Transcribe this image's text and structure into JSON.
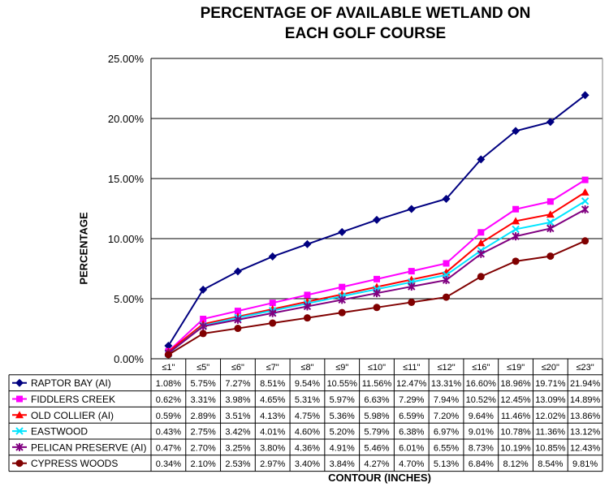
{
  "chart_data": {
    "type": "line",
    "title_line1": "PERCENTAGE OF AVAILABLE WETLAND ON",
    "title_line2": "EACH GOLF COURSE",
    "xlabel": "CONTOUR (INCHES)",
    "ylabel": "PERCENTAGE",
    "ylim": [
      0,
      25
    ],
    "y_ticks": [
      "0.00%",
      "5.00%",
      "10.00%",
      "15.00%",
      "20.00%",
      "25.00%"
    ],
    "grid": true,
    "legend": "data-table",
    "categories": [
      "≤1\"",
      "≤5\"",
      "≤6\"",
      "≤7\"",
      "≤8\"",
      "≤9\"",
      "≤10\"",
      "≤11\"",
      "≤12\"",
      "≤16\"",
      "≤19\"",
      "≤20\"",
      "≤23\""
    ],
    "series": [
      {
        "name": "RAPTOR BAY (AI)",
        "color": "#000080",
        "marker": "diamond",
        "values": [
          1.08,
          5.75,
          7.27,
          8.51,
          9.54,
          10.55,
          11.56,
          12.47,
          13.31,
          16.6,
          18.96,
          19.71,
          21.94
        ],
        "labels": [
          "1.08%",
          "5.75%",
          "7.27%",
          "8.51%",
          "9.54%",
          "10.55%",
          "11.56%",
          "12.47%",
          "13.31%",
          "16.60%",
          "18.96%",
          "19.71%",
          "21.94%"
        ]
      },
      {
        "name": "FIDDLERS CREEK",
        "color": "#FF00FF",
        "marker": "square",
        "values": [
          0.62,
          3.31,
          3.98,
          4.65,
          5.31,
          5.97,
          6.63,
          7.29,
          7.94,
          10.52,
          12.45,
          13.09,
          14.89
        ],
        "labels": [
          "0.62%",
          "3.31%",
          "3.98%",
          "4.65%",
          "5.31%",
          "5.97%",
          "6.63%",
          "7.29%",
          "7.94%",
          "10.52%",
          "12.45%",
          "13.09%",
          "14.89%"
        ]
      },
      {
        "name": "OLD COLLIER (AI)",
        "color": "#FF0000",
        "marker": "triangle",
        "values": [
          0.59,
          2.89,
          3.51,
          4.13,
          4.75,
          5.36,
          5.98,
          6.59,
          7.2,
          9.64,
          11.46,
          12.02,
          13.86
        ],
        "labels": [
          "0.59%",
          "2.89%",
          "3.51%",
          "4.13%",
          "4.75%",
          "5.36%",
          "5.98%",
          "6.59%",
          "7.20%",
          "9.64%",
          "11.46%",
          "12.02%",
          "13.86%"
        ]
      },
      {
        "name": "EASTWOOD",
        "color": "#00E5FF",
        "marker": "x",
        "values": [
          0.43,
          2.75,
          3.42,
          4.01,
          4.6,
          5.2,
          5.79,
          6.38,
          6.97,
          9.01,
          10.78,
          11.36,
          13.12
        ],
        "labels": [
          "0.43%",
          "2.75%",
          "3.42%",
          "4.01%",
          "4.60%",
          "5.20%",
          "5.79%",
          "6.38%",
          "6.97%",
          "9.01%",
          "10.78%",
          "11.36%",
          "13.12%"
        ]
      },
      {
        "name": "PELICAN PRESERVE (AI)",
        "color": "#800080",
        "marker": "star",
        "values": [
          0.47,
          2.7,
          3.25,
          3.8,
          4.36,
          4.91,
          5.46,
          6.01,
          6.55,
          8.73,
          10.19,
          10.85,
          12.43
        ],
        "labels": [
          "0.47%",
          "2.70%",
          "3.25%",
          "3.80%",
          "4.36%",
          "4.91%",
          "5.46%",
          "6.01%",
          "6.55%",
          "8.73%",
          "10.19%",
          "10.85%",
          "12.43%"
        ]
      },
      {
        "name": "CYPRESS WOODS",
        "color": "#800000",
        "marker": "circle",
        "values": [
          0.34,
          2.1,
          2.53,
          2.97,
          3.4,
          3.84,
          4.27,
          4.7,
          5.13,
          6.84,
          8.12,
          8.54,
          9.81
        ],
        "labels": [
          "0.34%",
          "2.10%",
          "2.53%",
          "2.97%",
          "3.40%",
          "3.84%",
          "4.27%",
          "4.70%",
          "5.13%",
          "6.84%",
          "8.12%",
          "8.54%",
          "9.81%"
        ]
      }
    ]
  }
}
